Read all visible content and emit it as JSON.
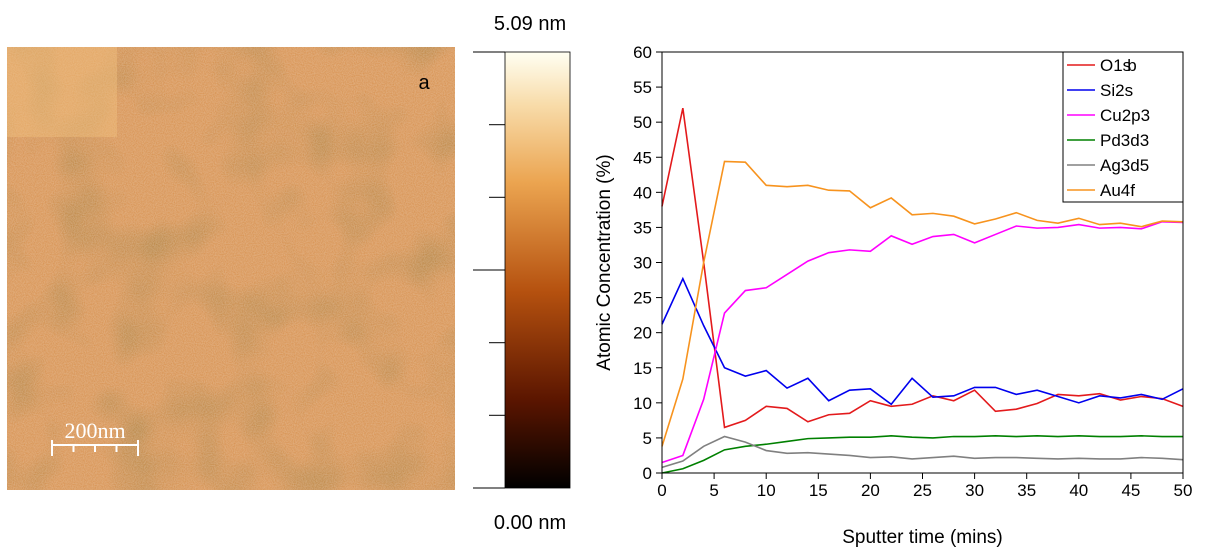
{
  "panel_a": {
    "label": "a",
    "scale_bar": "200nm",
    "colorbar_max": "5.09 nm",
    "colorbar_min": "0.00 nm"
  },
  "chart_data": {
    "type": "line",
    "panel_label": "b",
    "x_label": "Sputter time (mins)",
    "y_label": "Atomic Concentration (%)",
    "x": [
      0,
      2,
      4,
      6,
      8,
      10,
      12,
      14,
      16,
      18,
      20,
      22,
      24,
      26,
      28,
      30,
      32,
      34,
      36,
      38,
      40,
      42,
      44,
      46,
      48,
      50
    ],
    "series": [
      {
        "name": "O1s",
        "color": "#e31a1c",
        "values": [
          38,
          52,
          30,
          6.5,
          7.5,
          9.5,
          9.2,
          7.3,
          8.3,
          8.5,
          10.3,
          9.5,
          9.8,
          11,
          10.3,
          11.8,
          8.8,
          9.1,
          9.9,
          11.2,
          11,
          11.3,
          10.4,
          10.9,
          10.6,
          9.5
        ]
      },
      {
        "name": "Si2s",
        "color": "#0000ee",
        "values": [
          21.2,
          27.7,
          21,
          15,
          13.8,
          14.6,
          12.1,
          13.5,
          10.3,
          11.8,
          12,
          9.8,
          13.5,
          10.8,
          11,
          12.2,
          12.2,
          11.2,
          11.8,
          10.9,
          10,
          11,
          10.7,
          11.2,
          10.5,
          12
        ]
      },
      {
        "name": "Cu2p3",
        "color": "#ff00ff",
        "values": [
          1.5,
          2.5,
          10.5,
          22.8,
          26,
          26.4,
          28.3,
          30.2,
          31.4,
          31.8,
          31.6,
          33.8,
          32.6,
          33.7,
          34,
          32.8,
          34,
          35.2,
          34.9,
          35,
          35.4,
          34.9,
          35,
          34.8,
          35.8,
          35.7
        ]
      },
      {
        "name": "Pd3d3",
        "color": "#008000",
        "values": [
          0,
          0.6,
          1.8,
          3.3,
          3.8,
          4.1,
          4.5,
          4.9,
          5,
          5.1,
          5.1,
          5.3,
          5.1,
          5,
          5.2,
          5.2,
          5.3,
          5.2,
          5.3,
          5.2,
          5.3,
          5.2,
          5.2,
          5.3,
          5.2,
          5.2
        ]
      },
      {
        "name": "Ag3d5",
        "color": "#808080",
        "values": [
          0.8,
          1.7,
          3.8,
          5.2,
          4.4,
          3.2,
          2.8,
          2.9,
          2.7,
          2.5,
          2.2,
          2.3,
          2,
          2.2,
          2.4,
          2.1,
          2.2,
          2.2,
          2.1,
          2,
          2.1,
          2,
          2,
          2.2,
          2.1,
          1.9
        ]
      },
      {
        "name": "Au4f",
        "color": "#f7931e",
        "values": [
          3.8,
          13.4,
          30,
          44.4,
          44.3,
          41,
          40.8,
          41,
          40.3,
          40.2,
          37.8,
          39.2,
          36.8,
          37,
          36.6,
          35.5,
          36.2,
          37.1,
          36,
          35.6,
          36.3,
          35.4,
          35.6,
          35.1,
          35.9,
          35.8
        ]
      }
    ],
    "xlim": [
      0,
      50
    ],
    "xticks": [
      0,
      5,
      10,
      15,
      20,
      25,
      30,
      35,
      40,
      45,
      50
    ],
    "ylim": [
      0,
      60
    ],
    "yticks": [
      0,
      5,
      10,
      15,
      20,
      25,
      30,
      35,
      40,
      45,
      50,
      55,
      60
    ],
    "legend": "top-right"
  }
}
